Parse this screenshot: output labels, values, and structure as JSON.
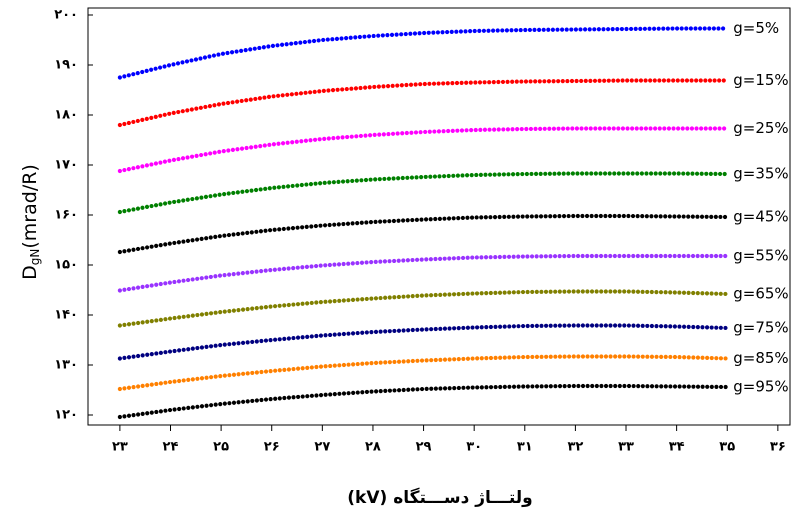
{
  "chart_data": {
    "type": "line",
    "ylabel": {
      "main": "D",
      "sub": "gN",
      "unit": "(mrad/R)"
    },
    "xlabel": "(kV) ولتـــاژ دســـتگاه",
    "x": [
      23,
      24,
      25,
      26,
      27,
      28,
      29,
      30,
      31,
      32,
      33,
      34,
      35
    ],
    "xlim": [
      22.37,
      36.24
    ],
    "ylim": [
      118,
      201.4
    ],
    "xticks": [
      {
        "value": 23,
        "label": "۲۳"
      },
      {
        "value": 24,
        "label": "۲۴"
      },
      {
        "value": 25,
        "label": "۲۵"
      },
      {
        "value": 26,
        "label": "۲۶"
      },
      {
        "value": 27,
        "label": "۲۷"
      },
      {
        "value": 28,
        "label": "۲۸"
      },
      {
        "value": 29,
        "label": "۲۹"
      },
      {
        "value": 30,
        "label": "۳۰"
      },
      {
        "value": 31,
        "label": "۳۱"
      },
      {
        "value": 32,
        "label": "۳۲"
      },
      {
        "value": 33,
        "label": "۳۳"
      },
      {
        "value": 34,
        "label": "۳۴"
      },
      {
        "value": 35,
        "label": "۳۵"
      },
      {
        "value": 36,
        "label": "۳۶"
      }
    ],
    "yticks": [
      {
        "value": 120,
        "label": "۱۲۰"
      },
      {
        "value": 130,
        "label": "۱۳۰"
      },
      {
        "value": 140,
        "label": "۱۴۰"
      },
      {
        "value": 150,
        "label": "۱۵۰"
      },
      {
        "value": 160,
        "label": "۱۶۰"
      },
      {
        "value": 170,
        "label": "۱۷۰"
      },
      {
        "value": 180,
        "label": "۱۸۰"
      },
      {
        "value": 190,
        "label": "۱۹۰"
      },
      {
        "value": 200,
        "label": "۲۰۰"
      }
    ],
    "series": [
      {
        "name": "g=5%",
        "color": "#0000ff",
        "values": [
          187.5,
          190,
          192.2,
          193.8,
          195,
          195.8,
          196.4,
          196.8,
          197,
          197.1,
          197.2,
          197.3,
          197.3
        ]
      },
      {
        "name": "g=15%",
        "color": "#ff0000",
        "values": [
          178,
          180.3,
          182.2,
          183.7,
          184.8,
          185.6,
          186.2,
          186.5,
          186.7,
          186.8,
          186.9,
          186.9,
          186.9
        ]
      },
      {
        "name": "g=25%",
        "color": "#ff00ff",
        "values": [
          168.8,
          170.9,
          172.7,
          174.1,
          175.2,
          176,
          176.6,
          177,
          177.2,
          177.3,
          177.3,
          177.3,
          177.3
        ]
      },
      {
        "name": "g=35%",
        "color": "#008000",
        "values": [
          160.6,
          162.5,
          164.1,
          165.4,
          166.4,
          167.1,
          167.6,
          168,
          168.2,
          168.3,
          168.3,
          168.3,
          168.2
        ]
      },
      {
        "name": "g=45%",
        "color": "#000000",
        "values": [
          152.6,
          154.3,
          155.8,
          157,
          157.9,
          158.6,
          159.1,
          159.5,
          159.7,
          159.8,
          159.8,
          159.7,
          159.6
        ]
      },
      {
        "name": "g=55%",
        "color": "#9933ff",
        "values": [
          144.9,
          146.5,
          147.9,
          149,
          149.9,
          150.6,
          151.1,
          151.5,
          151.7,
          151.8,
          151.8,
          151.8,
          151.8
        ]
      },
      {
        "name": "g=65%",
        "color": "#808000",
        "values": [
          137.9,
          139.3,
          140.6,
          141.7,
          142.6,
          143.3,
          143.9,
          144.3,
          144.6,
          144.7,
          144.7,
          144.5,
          144.2
        ]
      },
      {
        "name": "g=75%",
        "color": "#000080",
        "values": [
          131.3,
          132.7,
          134,
          135,
          135.9,
          136.6,
          137.1,
          137.5,
          137.8,
          137.9,
          137.9,
          137.7,
          137.4
        ]
      },
      {
        "name": "g=85%",
        "color": "#ff8000",
        "values": [
          125.2,
          126.6,
          127.8,
          128.8,
          129.7,
          130.4,
          130.9,
          131.3,
          131.6,
          131.7,
          131.7,
          131.6,
          131.3
        ]
      },
      {
        "name": "g=95%",
        "color": "#000000",
        "values": [
          119.6,
          121,
          122.2,
          123.2,
          124,
          124.7,
          125.2,
          125.5,
          125.7,
          125.8,
          125.8,
          125.7,
          125.6
        ]
      }
    ]
  }
}
